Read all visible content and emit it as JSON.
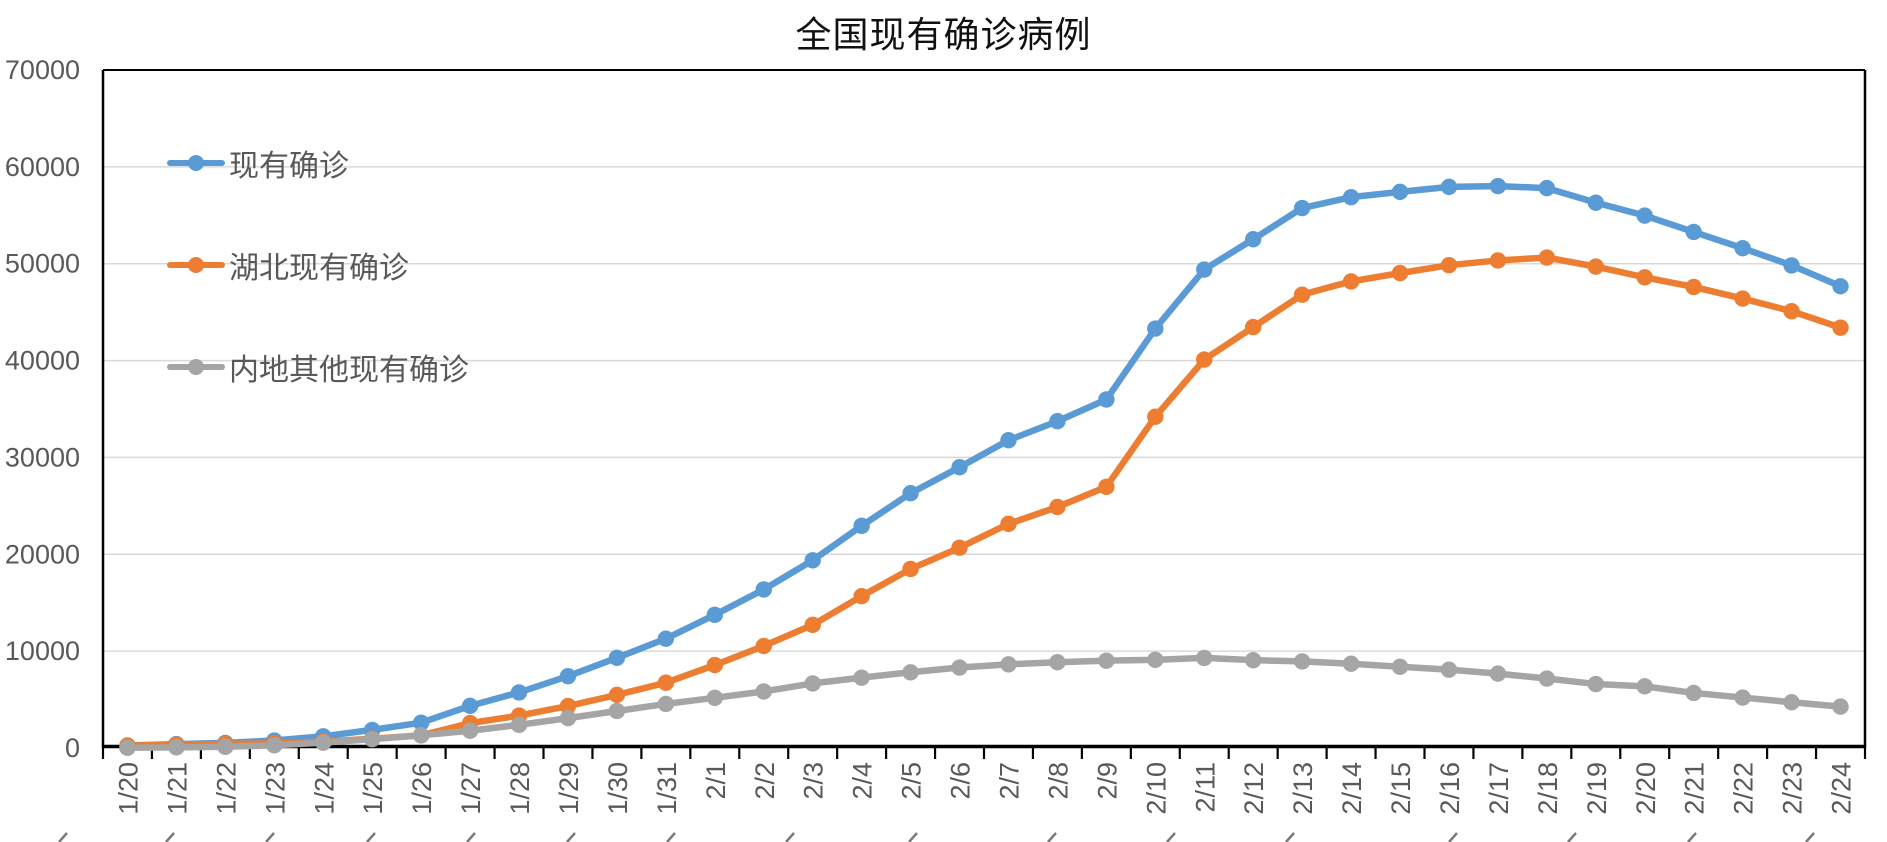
{
  "chart_data": {
    "type": "line",
    "title": "全国现有确诊病例",
    "categories": [
      "1/20",
      "1/21",
      "1/22",
      "1/23",
      "1/24",
      "1/25",
      "1/26",
      "1/27",
      "1/28",
      "1/29",
      "1/30",
      "1/31",
      "2/1",
      "2/2",
      "2/3",
      "2/4",
      "2/5",
      "2/6",
      "2/7",
      "2/8",
      "2/9",
      "2/10",
      "2/11",
      "2/12",
      "2/13",
      "2/14",
      "2/15",
      "2/16",
      "2/17",
      "2/18",
      "2/19",
      "2/20",
      "2/21",
      "2/22",
      "2/23",
      "2/24"
    ],
    "series": [
      {
        "name": "现有确诊",
        "color": "#5B9BD5",
        "values": [
          260,
          406,
          526,
          771,
          1208,
          1870,
          2613,
          4349,
          5739,
          7417,
          9308,
          11289,
          13748,
          16369,
          19381,
          22942,
          26302,
          28985,
          31774,
          33738,
          35982,
          43300,
          49400,
          52526,
          55748,
          56873,
          57416,
          57934,
          58016,
          57805,
          56303,
          54965,
          53284,
          51606,
          49824,
          47672
        ]
      },
      {
        "name": "湖北现有确诊",
        "color": "#ED7D31",
        "values": [
          239,
          338,
          399,
          494,
          658,
          958,
          1303,
          2567,
          3349,
          4334,
          5486,
          6738,
          8565,
          10532,
          12712,
          15679,
          18483,
          20677,
          23139,
          24881,
          26965,
          34200,
          40100,
          43455,
          46806,
          48175,
          49030,
          49847,
          50338,
          50633,
          49700,
          48600,
          47600,
          46400,
          45100,
          43400
        ]
      },
      {
        "name": "内地其他现有确诊",
        "color": "#A5A5A5",
        "values": [
          21,
          68,
          127,
          277,
          550,
          912,
          1310,
          1782,
          2390,
          3083,
          3822,
          4551,
          5183,
          5837,
          6669,
          7263,
          7819,
          8308,
          8635,
          8857,
          9017,
          9100,
          9300,
          9071,
          8942,
          8698,
          8386,
          8087,
          7678,
          7172,
          6603,
          6365,
          5684,
          5206,
          4724,
          4272
        ]
      }
    ],
    "ylim": [
      0,
      70000
    ],
    "ytick_step": 10000,
    "ytick_labels": [
      "0",
      "10000",
      "20000",
      "30000",
      "40000",
      "50000",
      "60000",
      "70000"
    ],
    "grid": true,
    "legend_position": "inside-top-left",
    "axis_label_color": "#595959",
    "gridline_color": "#D9D9D9",
    "axis_line_color": "#000000"
  }
}
